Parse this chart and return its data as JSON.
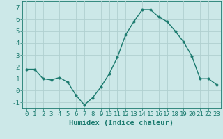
{
  "x": [
    0,
    1,
    2,
    3,
    4,
    5,
    6,
    7,
    8,
    9,
    10,
    11,
    12,
    13,
    14,
    15,
    16,
    17,
    18,
    19,
    20,
    21,
    22,
    23
  ],
  "y": [
    1.8,
    1.8,
    1.0,
    0.9,
    1.1,
    0.7,
    -0.4,
    -1.2,
    -0.6,
    0.3,
    1.4,
    2.8,
    4.7,
    5.8,
    6.8,
    6.8,
    6.2,
    5.8,
    5.0,
    4.1,
    2.9,
    1.0,
    1.0,
    0.5
  ],
  "line_color": "#1a7a6e",
  "marker_color": "#1a7a6e",
  "bg_color": "#cce8e8",
  "grid_color": "#b0d0d0",
  "xlabel": "Humidex (Indice chaleur)",
  "xlim": [
    -0.5,
    23.5
  ],
  "ylim": [
    -1.5,
    7.5
  ],
  "yticks": [
    -1,
    0,
    1,
    2,
    3,
    4,
    5,
    6,
    7
  ],
  "xticks": [
    0,
    1,
    2,
    3,
    4,
    5,
    6,
    7,
    8,
    9,
    10,
    11,
    12,
    13,
    14,
    15,
    16,
    17,
    18,
    19,
    20,
    21,
    22,
    23
  ],
  "xlabel_fontsize": 7.5,
  "tick_fontsize": 6.5,
  "line_width": 1.0,
  "marker_size": 2.5
}
